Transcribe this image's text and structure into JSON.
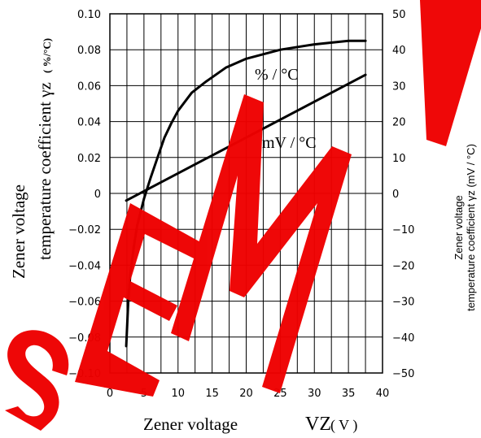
{
  "chart_data": {
    "type": "line",
    "x_axis": {
      "label": "Zener voltage",
      "symbol": "VZ",
      "unit": "( V )",
      "range": [
        0,
        40
      ],
      "ticks": [
        0,
        5,
        10,
        15,
        20,
        25,
        30,
        35,
        40
      ],
      "minor_step": 2.5
    },
    "y_axis_left": {
      "label_line1": "Zener voltage",
      "label_line2": "temperature coefficient γz",
      "unit": "( %/°C)",
      "range": [
        -0.1,
        0.1
      ],
      "tick_labels": [
        "0.10",
        "0.08",
        "0.06",
        "0.04",
        "0.02",
        "0",
        "−0.02",
        "−0.04",
        "−0.06",
        "−0.08",
        "−0.10"
      ],
      "tick_values": [
        0.1,
        0.08,
        0.06,
        0.04,
        0.02,
        0,
        -0.02,
        -0.04,
        -0.06,
        -0.08,
        -0.1
      ]
    },
    "y_axis_right": {
      "label_line1": "Zener voltage",
      "label_line2": "temperature coefficient γz (mV / °C)",
      "range": [
        -50,
        50
      ],
      "tick_labels": [
        "50",
        "40",
        "30",
        "20",
        "10",
        "0",
        "−10",
        "−20",
        "−30",
        "−40",
        "−50"
      ],
      "tick_values": [
        50,
        40,
        30,
        20,
        10,
        0,
        -10,
        -20,
        -30,
        -40,
        -50
      ]
    },
    "grid": true,
    "series": [
      {
        "name": "% / °C",
        "axis": "left",
        "x": [
          2.4,
          2.7,
          3.0,
          3.5,
          4.0,
          5.0,
          6.0,
          7.0,
          8.0,
          9.0,
          10.0,
          12.0,
          14.0,
          17.0,
          20.0,
          25.0,
          30.0,
          35.0,
          37.5
        ],
        "y": [
          -0.085,
          -0.06,
          -0.045,
          -0.03,
          -0.018,
          -0.003,
          0.009,
          0.02,
          0.031,
          0.039,
          0.046,
          0.056,
          0.062,
          0.07,
          0.075,
          0.08,
          0.083,
          0.085,
          0.085
        ]
      },
      {
        "name": "mV / °C",
        "axis": "right",
        "x": [
          2.4,
          37.5
        ],
        "y": [
          -2.0,
          33.0
        ]
      }
    ],
    "watermark": "SEMI"
  }
}
